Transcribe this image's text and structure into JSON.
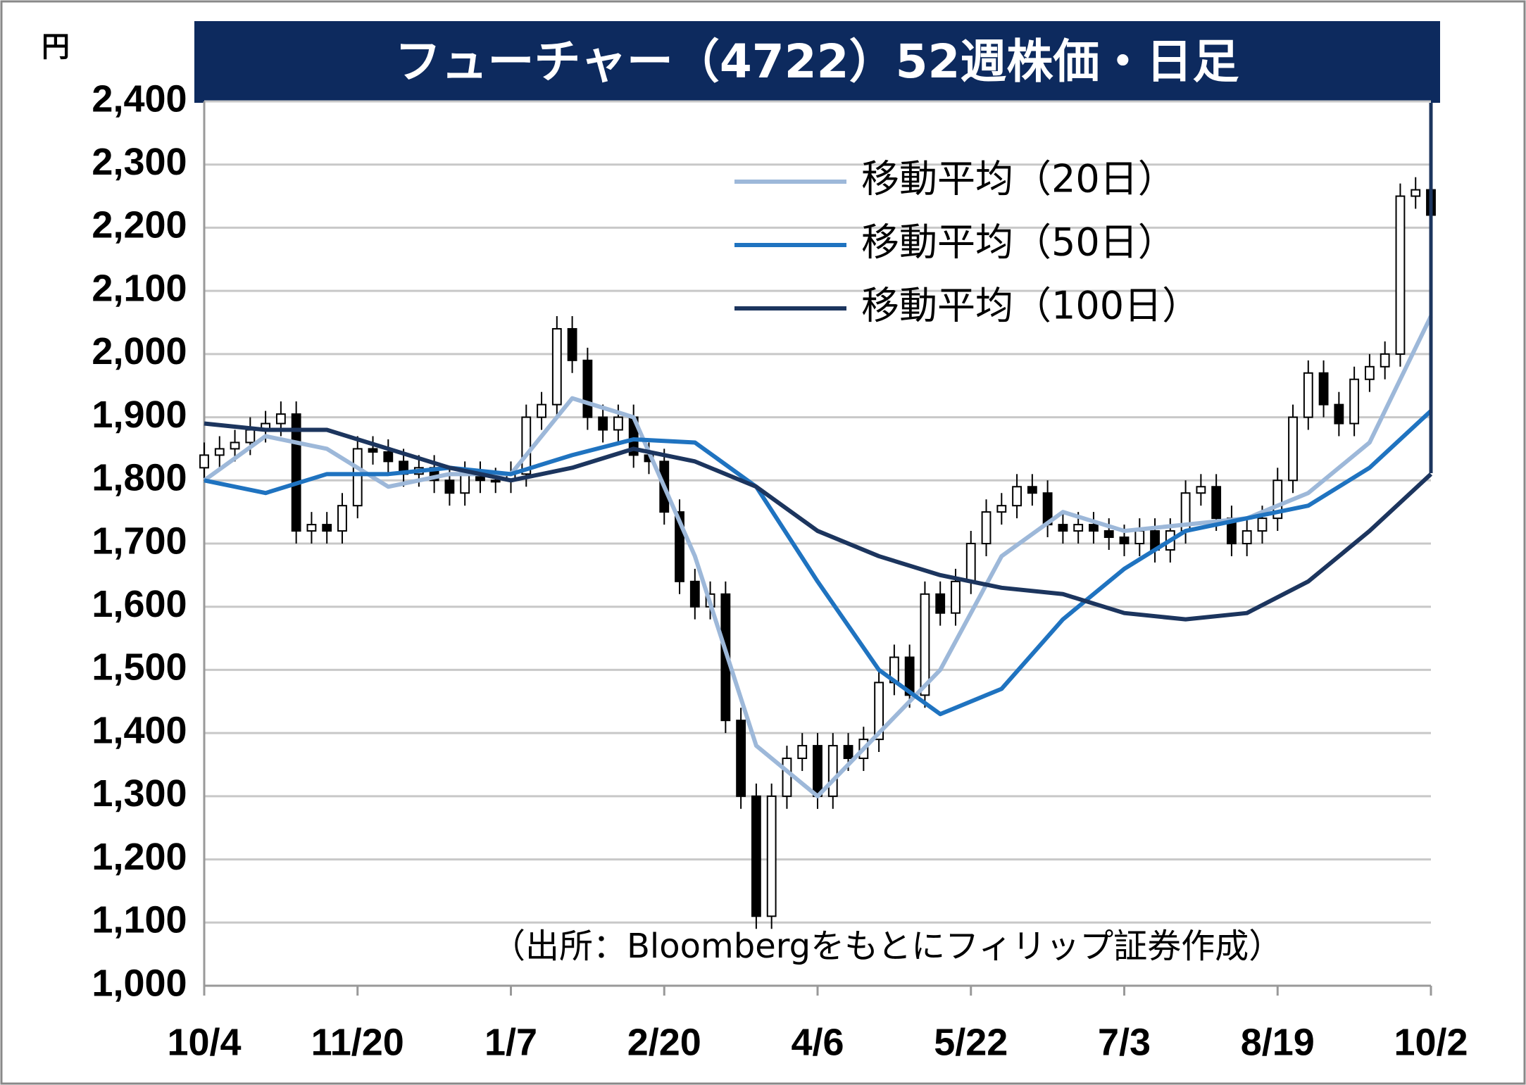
{
  "chart_data": {
    "type": "candlestick",
    "title": "フューチャー（4722）52週株価・日足",
    "unit_label": "円",
    "source": "（出所：Bloombergをもとにフィリップ証券作成）",
    "up_color": "#ffffff",
    "down_color": "#000000",
    "x": [
      0,
      3,
      6,
      9,
      12,
      15,
      18,
      21,
      24,
      27,
      30,
      33,
      36,
      39,
      42,
      45,
      48,
      51,
      54,
      57,
      60,
      63,
      66,
      69,
      72,
      75,
      78,
      81,
      84,
      87,
      90,
      93,
      96,
      99,
      102,
      105,
      108,
      111,
      114,
      117,
      120,
      123,
      126,
      129,
      132,
      135,
      138,
      141,
      144,
      147,
      150,
      153,
      156,
      159,
      162,
      165,
      168,
      171,
      174,
      177,
      180,
      183,
      186,
      189,
      192,
      195,
      198,
      201,
      204,
      207,
      210,
      213,
      216,
      219,
      222,
      225,
      228,
      231,
      234,
      237,
      240
    ],
    "open": [
      1820,
      1840,
      1850,
      1860,
      1880,
      1890,
      1905,
      1720,
      1730,
      1720,
      1760,
      1850,
      1845,
      1830,
      1810,
      1820,
      1800,
      1780,
      1810,
      1800,
      1800,
      1810,
      1900,
      1920,
      2040,
      1990,
      1900,
      1880,
      1900,
      1840,
      1830,
      1750,
      1640,
      1600,
      1620,
      1420,
      1300,
      1110,
      1300,
      1360,
      1380,
      1300,
      1380,
      1360,
      1390,
      1480,
      1520,
      1460,
      1620,
      1590,
      1640,
      1700,
      1750,
      1760,
      1790,
      1780,
      1730,
      1720,
      1730,
      1720,
      1710,
      1700,
      1720,
      1690,
      1720,
      1780,
      1790,
      1740,
      1700,
      1720,
      1740,
      1800,
      1900,
      1970,
      1920,
      1890,
      1960,
      1980,
      2000,
      2250,
      2260
    ],
    "high": [
      1860,
      1870,
      1880,
      1900,
      1910,
      1925,
      1925,
      1750,
      1750,
      1780,
      1870,
      1870,
      1865,
      1850,
      1840,
      1840,
      1820,
      1830,
      1830,
      1820,
      1830,
      1920,
      1940,
      2060,
      2060,
      2010,
      1920,
      1920,
      1920,
      1860,
      1850,
      1770,
      1660,
      1640,
      1640,
      1440,
      1320,
      1320,
      1380,
      1400,
      1400,
      1400,
      1400,
      1410,
      1500,
      1540,
      1540,
      1640,
      1640,
      1660,
      1720,
      1770,
      1780,
      1810,
      1810,
      1800,
      1750,
      1750,
      1750,
      1740,
      1730,
      1740,
      1740,
      1740,
      1800,
      1810,
      1810,
      1760,
      1740,
      1760,
      1820,
      1920,
      1990,
      1990,
      1940,
      1980,
      2000,
      2020,
      2270,
      2280,
      2280
    ],
    "low": [
      1800,
      1820,
      1830,
      1840,
      1860,
      1870,
      1700,
      1700,
      1700,
      1700,
      1740,
      1825,
      1810,
      1790,
      1790,
      1780,
      1760,
      1760,
      1780,
      1780,
      1780,
      1790,
      1880,
      1900,
      1970,
      1880,
      1860,
      1860,
      1820,
      1810,
      1730,
      1620,
      1580,
      1580,
      1400,
      1280,
      1090,
      1090,
      1280,
      1340,
      1280,
      1280,
      1340,
      1340,
      1370,
      1460,
      1440,
      1440,
      1570,
      1570,
      1620,
      1680,
      1730,
      1740,
      1760,
      1710,
      1700,
      1700,
      1700,
      1690,
      1680,
      1680,
      1670,
      1670,
      1700,
      1760,
      1720,
      1680,
      1680,
      1700,
      1720,
      1780,
      1880,
      1900,
      1870,
      1870,
      1940,
      1960,
      1980,
      2230,
      2200
    ],
    "close": [
      1840,
      1850,
      1860,
      1880,
      1890,
      1905,
      1720,
      1730,
      1720,
      1760,
      1850,
      1845,
      1830,
      1810,
      1820,
      1800,
      1780,
      1810,
      1800,
      1800,
      1810,
      1900,
      1920,
      2040,
      1990,
      1900,
      1880,
      1900,
      1840,
      1830,
      1750,
      1640,
      1600,
      1620,
      1420,
      1300,
      1110,
      1300,
      1360,
      1380,
      1300,
      1380,
      1360,
      1390,
      1480,
      1520,
      1460,
      1620,
      1590,
      1640,
      1700,
      1750,
      1760,
      1790,
      1780,
      1730,
      1720,
      1730,
      1720,
      1710,
      1700,
      1720,
      1690,
      1720,
      1780,
      1790,
      1740,
      1700,
      1720,
      1740,
      1800,
      1900,
      1970,
      1920,
      1890,
      1960,
      1980,
      2000,
      2250,
      2260,
      2220
    ],
    "series": [
      {
        "name": "移動平均（20日）",
        "color": "#9db8d9",
        "x": [
          0,
          12,
          24,
          36,
          48,
          60,
          72,
          84,
          96,
          108,
          120,
          132,
          144,
          156,
          168,
          180,
          192,
          204,
          216,
          228,
          240
        ],
        "values": [
          1800,
          1870,
          1850,
          1790,
          1810,
          1810,
          1930,
          1900,
          1680,
          1380,
          1300,
          1400,
          1500,
          1680,
          1750,
          1720,
          1730,
          1740,
          1780,
          1860,
          2060
        ]
      },
      {
        "name": "移動平均（50日）",
        "color": "#1f73c0",
        "x": [
          0,
          12,
          24,
          36,
          48,
          60,
          72,
          84,
          96,
          108,
          120,
          132,
          144,
          156,
          168,
          180,
          192,
          204,
          216,
          228,
          240
        ],
        "values": [
          1800,
          1780,
          1810,
          1810,
          1820,
          1810,
          1840,
          1865,
          1860,
          1790,
          1640,
          1500,
          1430,
          1470,
          1580,
          1660,
          1720,
          1740,
          1760,
          1820,
          1910
        ]
      },
      {
        "name": "移動平均（100日）",
        "color": "#1c355e",
        "x": [
          0,
          12,
          24,
          36,
          48,
          60,
          72,
          84,
          96,
          108,
          120,
          132,
          144,
          156,
          168,
          180,
          192,
          204,
          216,
          228,
          240
        ],
        "values": [
          1890,
          1880,
          1880,
          1850,
          1820,
          1800,
          1820,
          1850,
          1830,
          1790,
          1720,
          1680,
          1650,
          1630,
          1620,
          1590,
          1580,
          1590,
          1640,
          1720,
          1810
        ]
      }
    ],
    "xlim": [
      0,
      240
    ],
    "xticks": [
      {
        "value": 0,
        "label": "10/4"
      },
      {
        "value": 30,
        "label": "11/20"
      },
      {
        "value": 60,
        "label": "1/7"
      },
      {
        "value": 90,
        "label": "2/20"
      },
      {
        "value": 120,
        "label": "4/6"
      },
      {
        "value": 150,
        "label": "5/22"
      },
      {
        "value": 180,
        "label": "7/3"
      },
      {
        "value": 210,
        "label": "8/19"
      },
      {
        "value": 240,
        "label": "10/2"
      }
    ],
    "ylim": [
      1000,
      2400
    ],
    "yticks": [
      {
        "value": 1000,
        "label": "1,000"
      },
      {
        "value": 1100,
        "label": "1,100"
      },
      {
        "value": 1200,
        "label": "1,200"
      },
      {
        "value": 1300,
        "label": "1,300"
      },
      {
        "value": 1400,
        "label": "1,400"
      },
      {
        "value": 1500,
        "label": "1,500"
      },
      {
        "value": 1600,
        "label": "1,600"
      },
      {
        "value": 1700,
        "label": "1,700"
      },
      {
        "value": 1800,
        "label": "1,800"
      },
      {
        "value": 1900,
        "label": "1,900"
      },
      {
        "value": 2000,
        "label": "2,000"
      },
      {
        "value": 2100,
        "label": "2,100"
      },
      {
        "value": 2200,
        "label": "2,200"
      },
      {
        "value": 2300,
        "label": "2,300"
      },
      {
        "value": 2400,
        "label": "2,400"
      }
    ],
    "grid": true
  }
}
